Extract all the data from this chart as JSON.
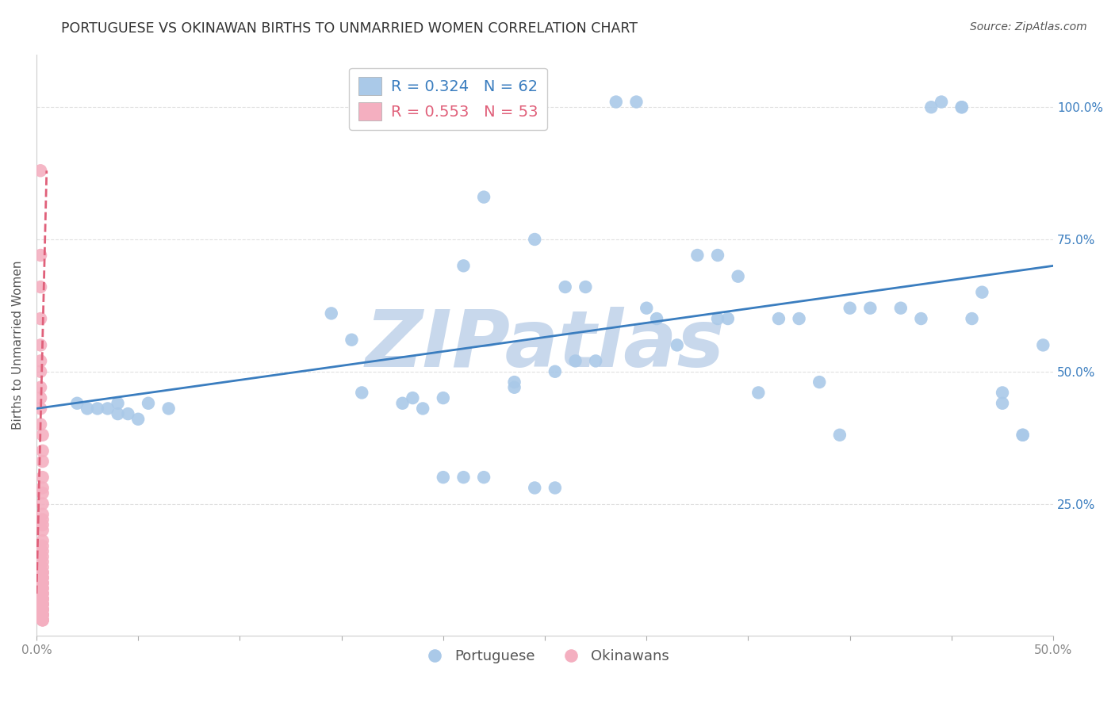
{
  "title": "PORTUGUESE VS OKINAWAN BIRTHS TO UNMARRIED WOMEN CORRELATION CHART",
  "source": "Source: ZipAtlas.com",
  "ylabel": "Births to Unmarried Women",
  "x_min": 0.0,
  "x_max": 0.5,
  "y_min": 0.0,
  "y_max": 1.1,
  "x_ticks": [
    0.0,
    0.05,
    0.1,
    0.15,
    0.2,
    0.25,
    0.3,
    0.35,
    0.4,
    0.45,
    0.5
  ],
  "x_tick_labels": [
    "0.0%",
    "",
    "",
    "",
    "",
    "",
    "",
    "",
    "",
    "",
    "50.0%"
  ],
  "y_ticks": [
    0.25,
    0.5,
    0.75,
    1.0
  ],
  "y_tick_labels_right": [
    "25.0%",
    "50.0%",
    "75.0%",
    "100.0%"
  ],
  "blue_R": 0.324,
  "blue_N": 62,
  "pink_R": 0.553,
  "pink_N": 53,
  "blue_color": "#aac9e8",
  "pink_color": "#f4afc0",
  "blue_line_color": "#3a7dbf",
  "pink_line_color": "#e0607a",
  "watermark": "ZIPatlas",
  "watermark_color": "#c8d8ec",
  "blue_scatter_x": [
    0.285,
    0.295,
    0.44,
    0.455,
    0.22,
    0.245,
    0.21,
    0.145,
    0.155,
    0.04,
    0.055,
    0.065,
    0.02,
    0.025,
    0.03,
    0.035,
    0.04,
    0.045,
    0.05,
    0.16,
    0.18,
    0.19,
    0.185,
    0.2,
    0.235,
    0.255,
    0.265,
    0.275,
    0.3,
    0.305,
    0.335,
    0.34,
    0.365,
    0.375,
    0.385,
    0.4,
    0.41,
    0.425,
    0.435,
    0.46,
    0.475,
    0.485,
    0.315,
    0.355,
    0.395,
    0.445,
    0.455,
    0.465,
    0.475,
    0.485,
    0.495,
    0.26,
    0.27,
    0.2,
    0.21,
    0.22,
    0.235,
    0.245,
    0.255,
    0.325,
    0.335,
    0.345
  ],
  "blue_scatter_y": [
    1.01,
    1.01,
    1.0,
    1.0,
    0.83,
    0.75,
    0.7,
    0.61,
    0.56,
    0.44,
    0.44,
    0.43,
    0.44,
    0.43,
    0.43,
    0.43,
    0.42,
    0.42,
    0.41,
    0.46,
    0.44,
    0.43,
    0.45,
    0.45,
    0.47,
    0.5,
    0.52,
    0.52,
    0.62,
    0.6,
    0.6,
    0.6,
    0.6,
    0.6,
    0.48,
    0.62,
    0.62,
    0.62,
    0.6,
    0.6,
    0.44,
    0.38,
    0.55,
    0.46,
    0.38,
    1.01,
    1.0,
    0.65,
    0.46,
    0.38,
    0.55,
    0.66,
    0.66,
    0.3,
    0.3,
    0.3,
    0.48,
    0.28,
    0.28,
    0.72,
    0.72,
    0.68
  ],
  "pink_scatter_x": [
    0.002,
    0.002,
    0.002,
    0.002,
    0.002,
    0.002,
    0.002,
    0.002,
    0.002,
    0.002,
    0.002,
    0.003,
    0.003,
    0.003,
    0.003,
    0.003,
    0.003,
    0.003,
    0.003,
    0.003,
    0.003,
    0.003,
    0.003,
    0.003,
    0.003,
    0.003,
    0.003,
    0.003,
    0.003,
    0.003,
    0.003,
    0.003,
    0.003,
    0.003,
    0.003,
    0.003,
    0.003,
    0.003,
    0.003,
    0.003,
    0.003,
    0.003,
    0.003,
    0.003,
    0.003,
    0.003,
    0.003,
    0.003,
    0.003,
    0.003,
    0.003,
    0.003,
    0.003
  ],
  "pink_scatter_y": [
    0.88,
    0.72,
    0.66,
    0.6,
    0.55,
    0.52,
    0.5,
    0.47,
    0.45,
    0.43,
    0.4,
    0.38,
    0.35,
    0.33,
    0.3,
    0.28,
    0.27,
    0.25,
    0.23,
    0.22,
    0.21,
    0.2,
    0.18,
    0.17,
    0.16,
    0.15,
    0.14,
    0.13,
    0.12,
    0.12,
    0.11,
    0.11,
    0.1,
    0.1,
    0.09,
    0.09,
    0.08,
    0.08,
    0.07,
    0.07,
    0.07,
    0.06,
    0.06,
    0.06,
    0.05,
    0.05,
    0.05,
    0.04,
    0.04,
    0.04,
    0.03,
    0.03,
    0.03
  ],
  "blue_line_x": [
    0.0,
    0.5
  ],
  "blue_line_y": [
    0.43,
    0.7
  ],
  "pink_line_x": [
    0.0,
    0.005
  ],
  "pink_line_y": [
    0.08,
    0.88
  ],
  "background_color": "#ffffff",
  "grid_color": "#e0e0e0"
}
